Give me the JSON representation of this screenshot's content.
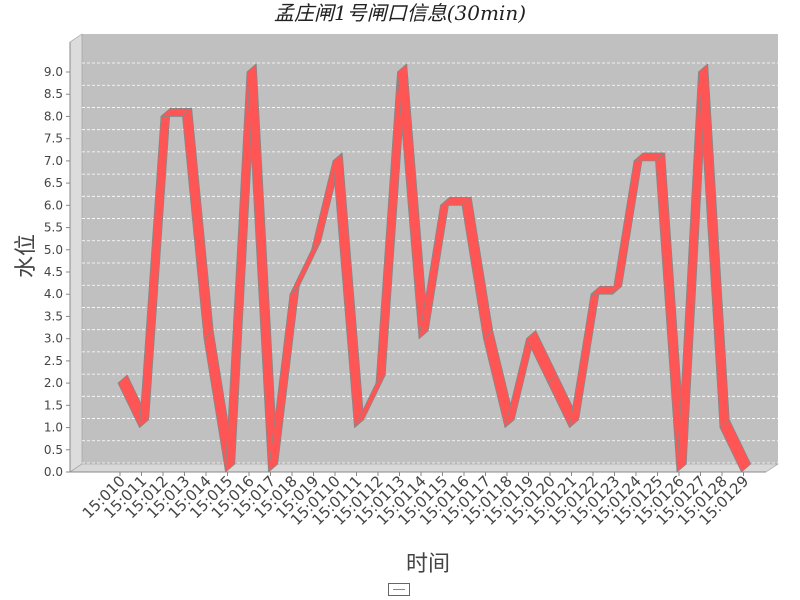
{
  "chart_data": {
    "type": "line",
    "title": "孟庄闸1号闸口信息(30min)",
    "xlabel": "时间",
    "ylabel": "水位",
    "ylim": [
      0,
      9.0
    ],
    "yticks": [
      "0.0",
      "0.5",
      "1.0",
      "1.5",
      "2.0",
      "2.5",
      "3.0",
      "3.5",
      "4.0",
      "4.5",
      "5.0",
      "5.5",
      "6.0",
      "6.5",
      "7.0",
      "7.5",
      "8.0",
      "8.5",
      "9.0"
    ],
    "three_d": true,
    "grid": "horizontal dashed",
    "legend": "bottom-center",
    "categories": [
      "15:010",
      "15:011",
      "15:012",
      "15:013",
      "15:014",
      "15:015",
      "15:016",
      "15:017",
      "15:018",
      "15:019",
      "15:0110",
      "15:0111",
      "15:0112",
      "15:0113",
      "15:0114",
      "15:0115",
      "15:0116",
      "15:0117",
      "15:0118",
      "15:0119",
      "15:0120",
      "15:0121",
      "15:0122",
      "15:0123",
      "15:0124",
      "15:0125",
      "15:0126",
      "15:0127",
      "15:0128",
      "15:0129"
    ],
    "series": [
      {
        "values": [
          2,
          1,
          8,
          8,
          3,
          0,
          9,
          0,
          4,
          5,
          7,
          1,
          2,
          9,
          3,
          6,
          6,
          3,
          1,
          3,
          2,
          1,
          4,
          4,
          7,
          7,
          0,
          9,
          1,
          0
        ],
        "color": "#ff5555"
      }
    ],
    "colors": {
      "plot_bg": "#c0c0c0",
      "wall_side": "#dcdcdc",
      "floor": "#d8d8d8",
      "line": "#ff5555",
      "edge": "#888888"
    }
  }
}
